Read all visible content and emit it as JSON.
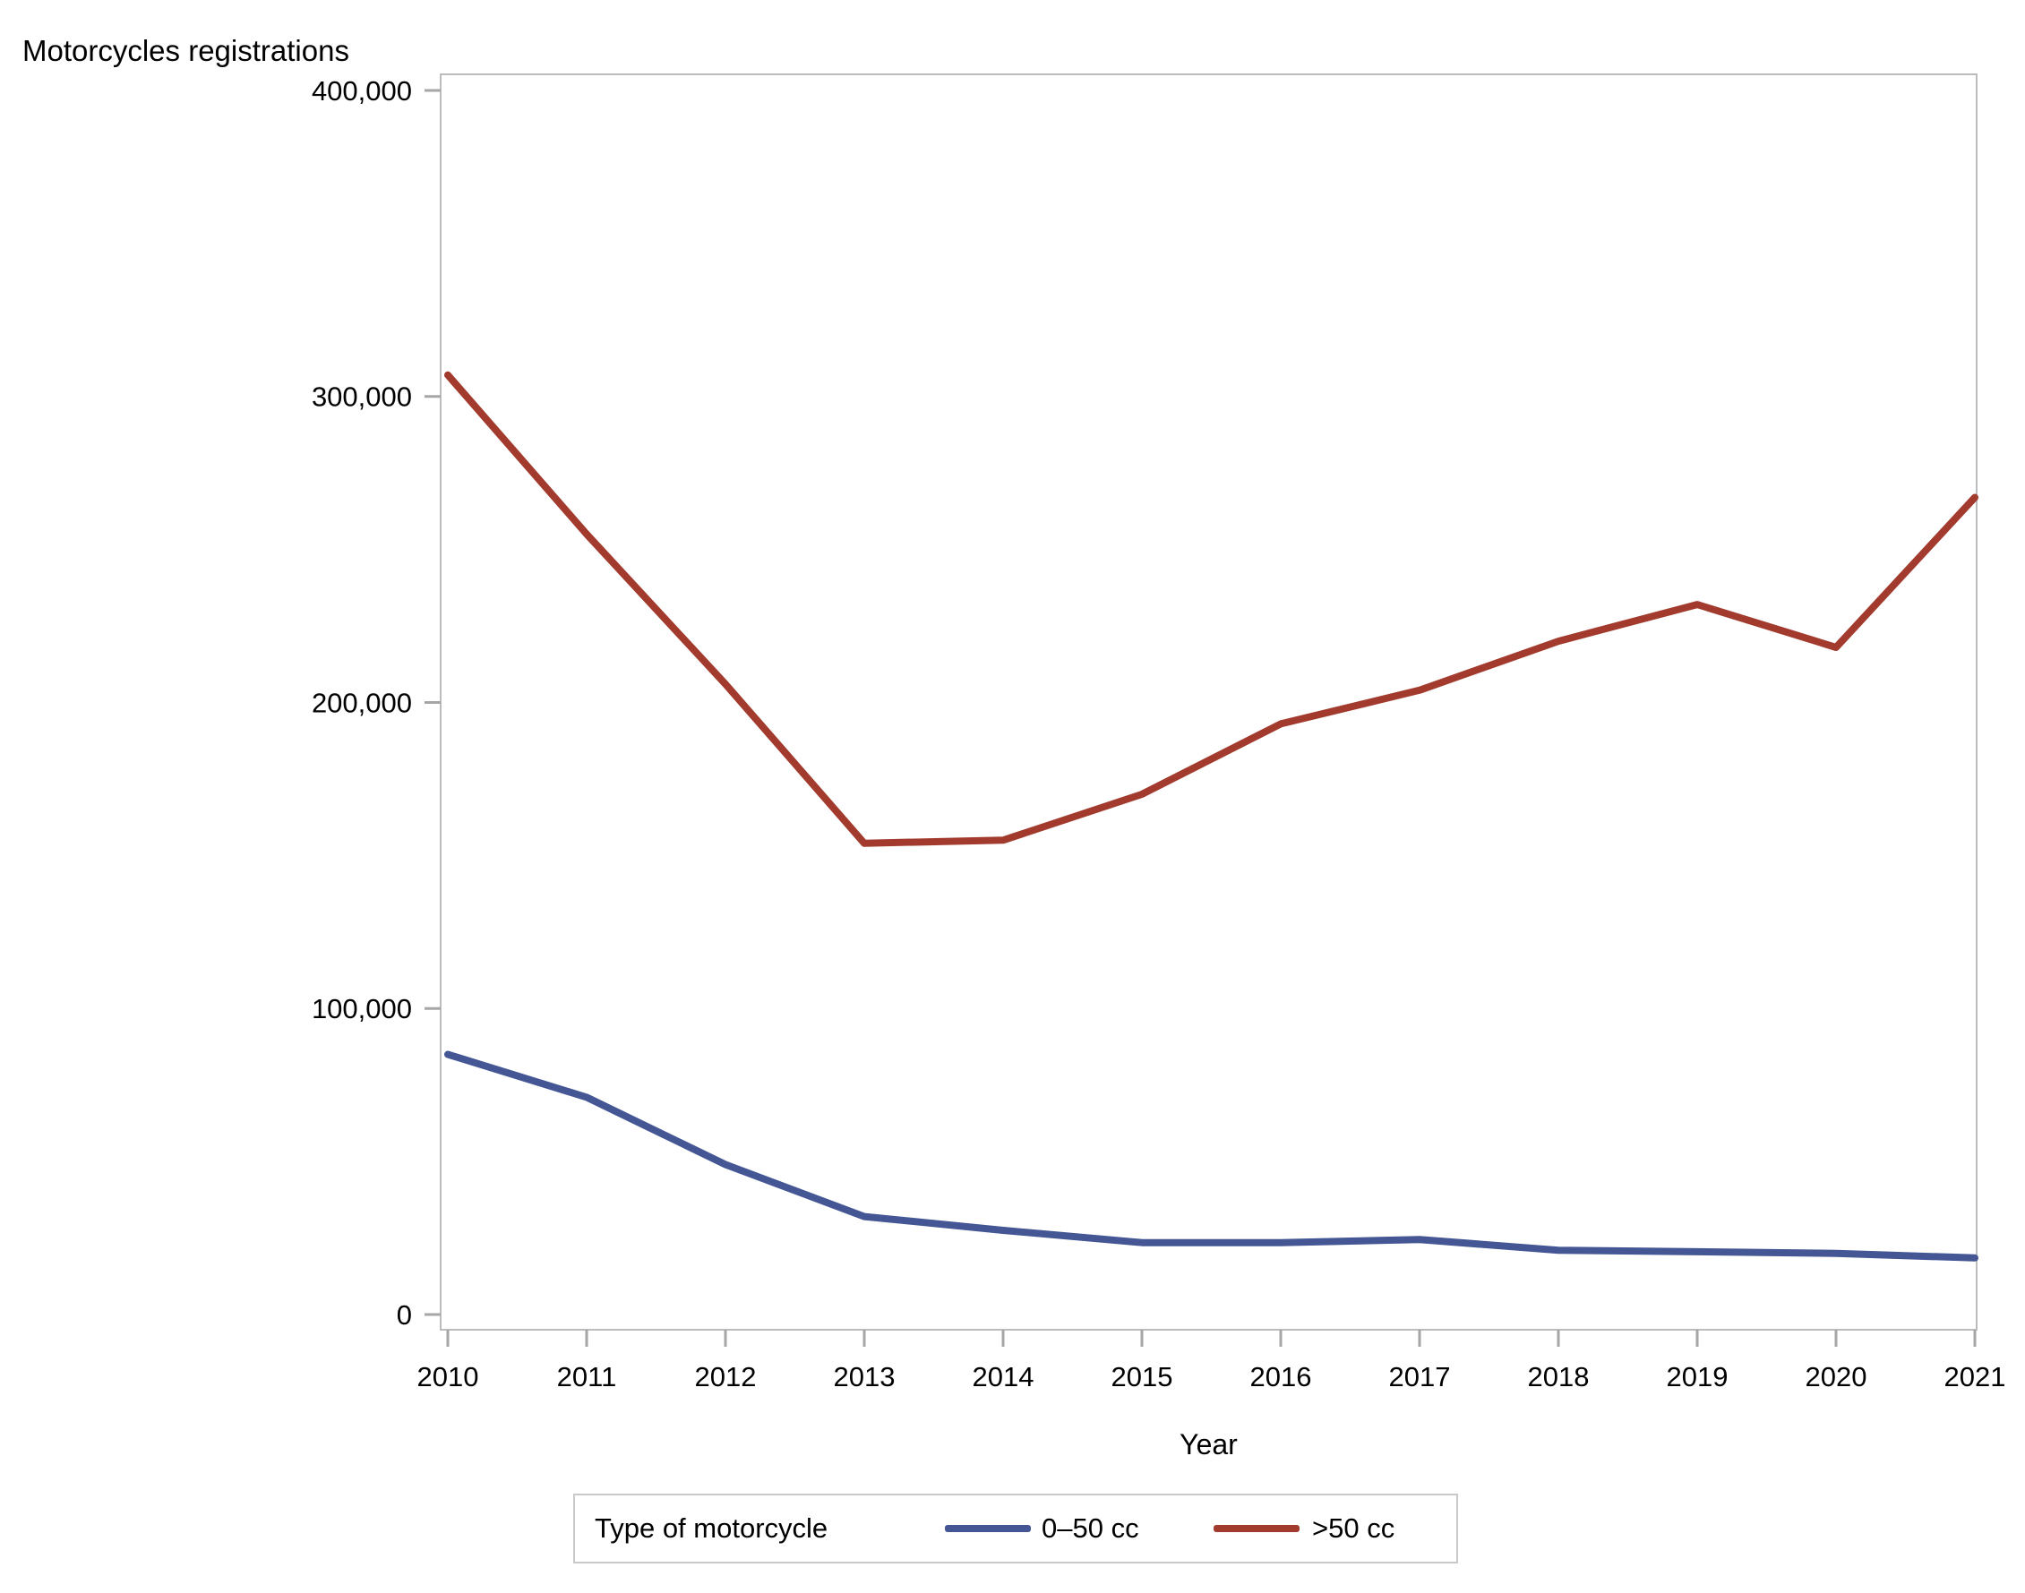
{
  "chart": {
    "title": "Motorcycles registrations"
  },
  "chart_data": {
    "type": "line",
    "x": [
      2010,
      2011,
      2012,
      2013,
      2014,
      2015,
      2016,
      2017,
      2018,
      2019,
      2020,
      2021
    ],
    "series": [
      {
        "name": "0–50 cc",
        "color": "#445694",
        "values": [
          85000,
          71000,
          49000,
          32000,
          27500,
          23500,
          23500,
          24500,
          21000,
          20500,
          20000,
          18500
        ]
      },
      {
        "name": ">50 cc",
        "color": "#A23B2E",
        "values": [
          307000,
          255000,
          206000,
          154000,
          155000,
          170000,
          193000,
          204000,
          220000,
          232000,
          218000,
          267000
        ]
      }
    ],
    "title": "Motorcycles registrations",
    "xlabel": "Year",
    "ylabel": "Motorcycles registrations",
    "ylim": [
      0,
      400000
    ],
    "yticks": [
      0,
      100000,
      200000,
      300000,
      400000
    ],
    "grid": false,
    "legend_position": "bottom"
  },
  "legend": {
    "title": "Type of motorcycle",
    "items": [
      {
        "label": "0–50 cc",
        "color": "#445694"
      },
      {
        "label": ">50 cc",
        "color": "#A23B2E"
      }
    ]
  }
}
